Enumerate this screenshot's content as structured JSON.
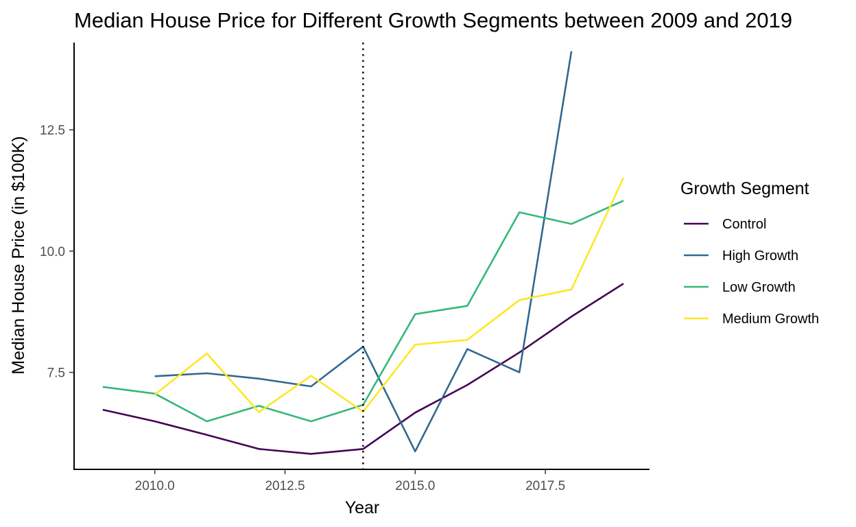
{
  "chart_data": {
    "type": "line",
    "title": "Median House Price for Different Growth Segments between 2009 and 2019",
    "xlabel": "Year",
    "ylabel": "Median House Price (in $100K)",
    "xlim": [
      2008.45,
      2019.5
    ],
    "ylim": [
      5.5,
      14.3
    ],
    "x_ticks": [
      2010.0,
      2012.5,
      2015.0,
      2017.5
    ],
    "x_tick_labels": [
      "2010.0",
      "2012.5",
      "2015.0",
      "2017.5"
    ],
    "y_ticks": [
      7.5,
      10.0,
      12.5
    ],
    "y_tick_labels": [
      "7.5",
      "10.0",
      "12.5"
    ],
    "grid": false,
    "vline": {
      "x": 2014,
      "style": "dotted",
      "color": "#000000"
    },
    "legend": {
      "title": "Growth Segment",
      "position": "right"
    },
    "series": [
      {
        "name": "Control",
        "color": "#440154",
        "x": [
          2009,
          2010,
          2011,
          2012,
          2013,
          2014,
          2015,
          2016,
          2017,
          2018,
          2019
        ],
        "values": [
          6.73,
          6.49,
          6.21,
          5.92,
          5.82,
          5.92,
          6.67,
          7.24,
          7.91,
          8.65,
          9.33
        ]
      },
      {
        "name": "High Growth",
        "color": "#31688E",
        "x": [
          2010,
          2011,
          2012,
          2013,
          2014,
          2015,
          2016,
          2017,
          2018
        ],
        "values": [
          7.42,
          7.48,
          7.37,
          7.21,
          8.03,
          5.87,
          7.98,
          7.5,
          14.12
        ]
      },
      {
        "name": "Low Growth",
        "color": "#35B779",
        "x": [
          2009,
          2010,
          2011,
          2012,
          2013,
          2014,
          2015,
          2016,
          2017,
          2018,
          2019
        ],
        "values": [
          7.2,
          7.06,
          6.49,
          6.81,
          6.49,
          6.83,
          8.7,
          8.87,
          10.8,
          10.56,
          11.04
        ]
      },
      {
        "name": "Medium Growth",
        "color": "#FDE725",
        "x": [
          2010,
          2011,
          2012,
          2013,
          2014,
          2015,
          2016,
          2017,
          2018,
          2019
        ],
        "values": [
          7.04,
          7.89,
          6.68,
          7.43,
          6.69,
          8.07,
          8.17,
          8.99,
          9.21,
          11.51
        ]
      }
    ]
  }
}
